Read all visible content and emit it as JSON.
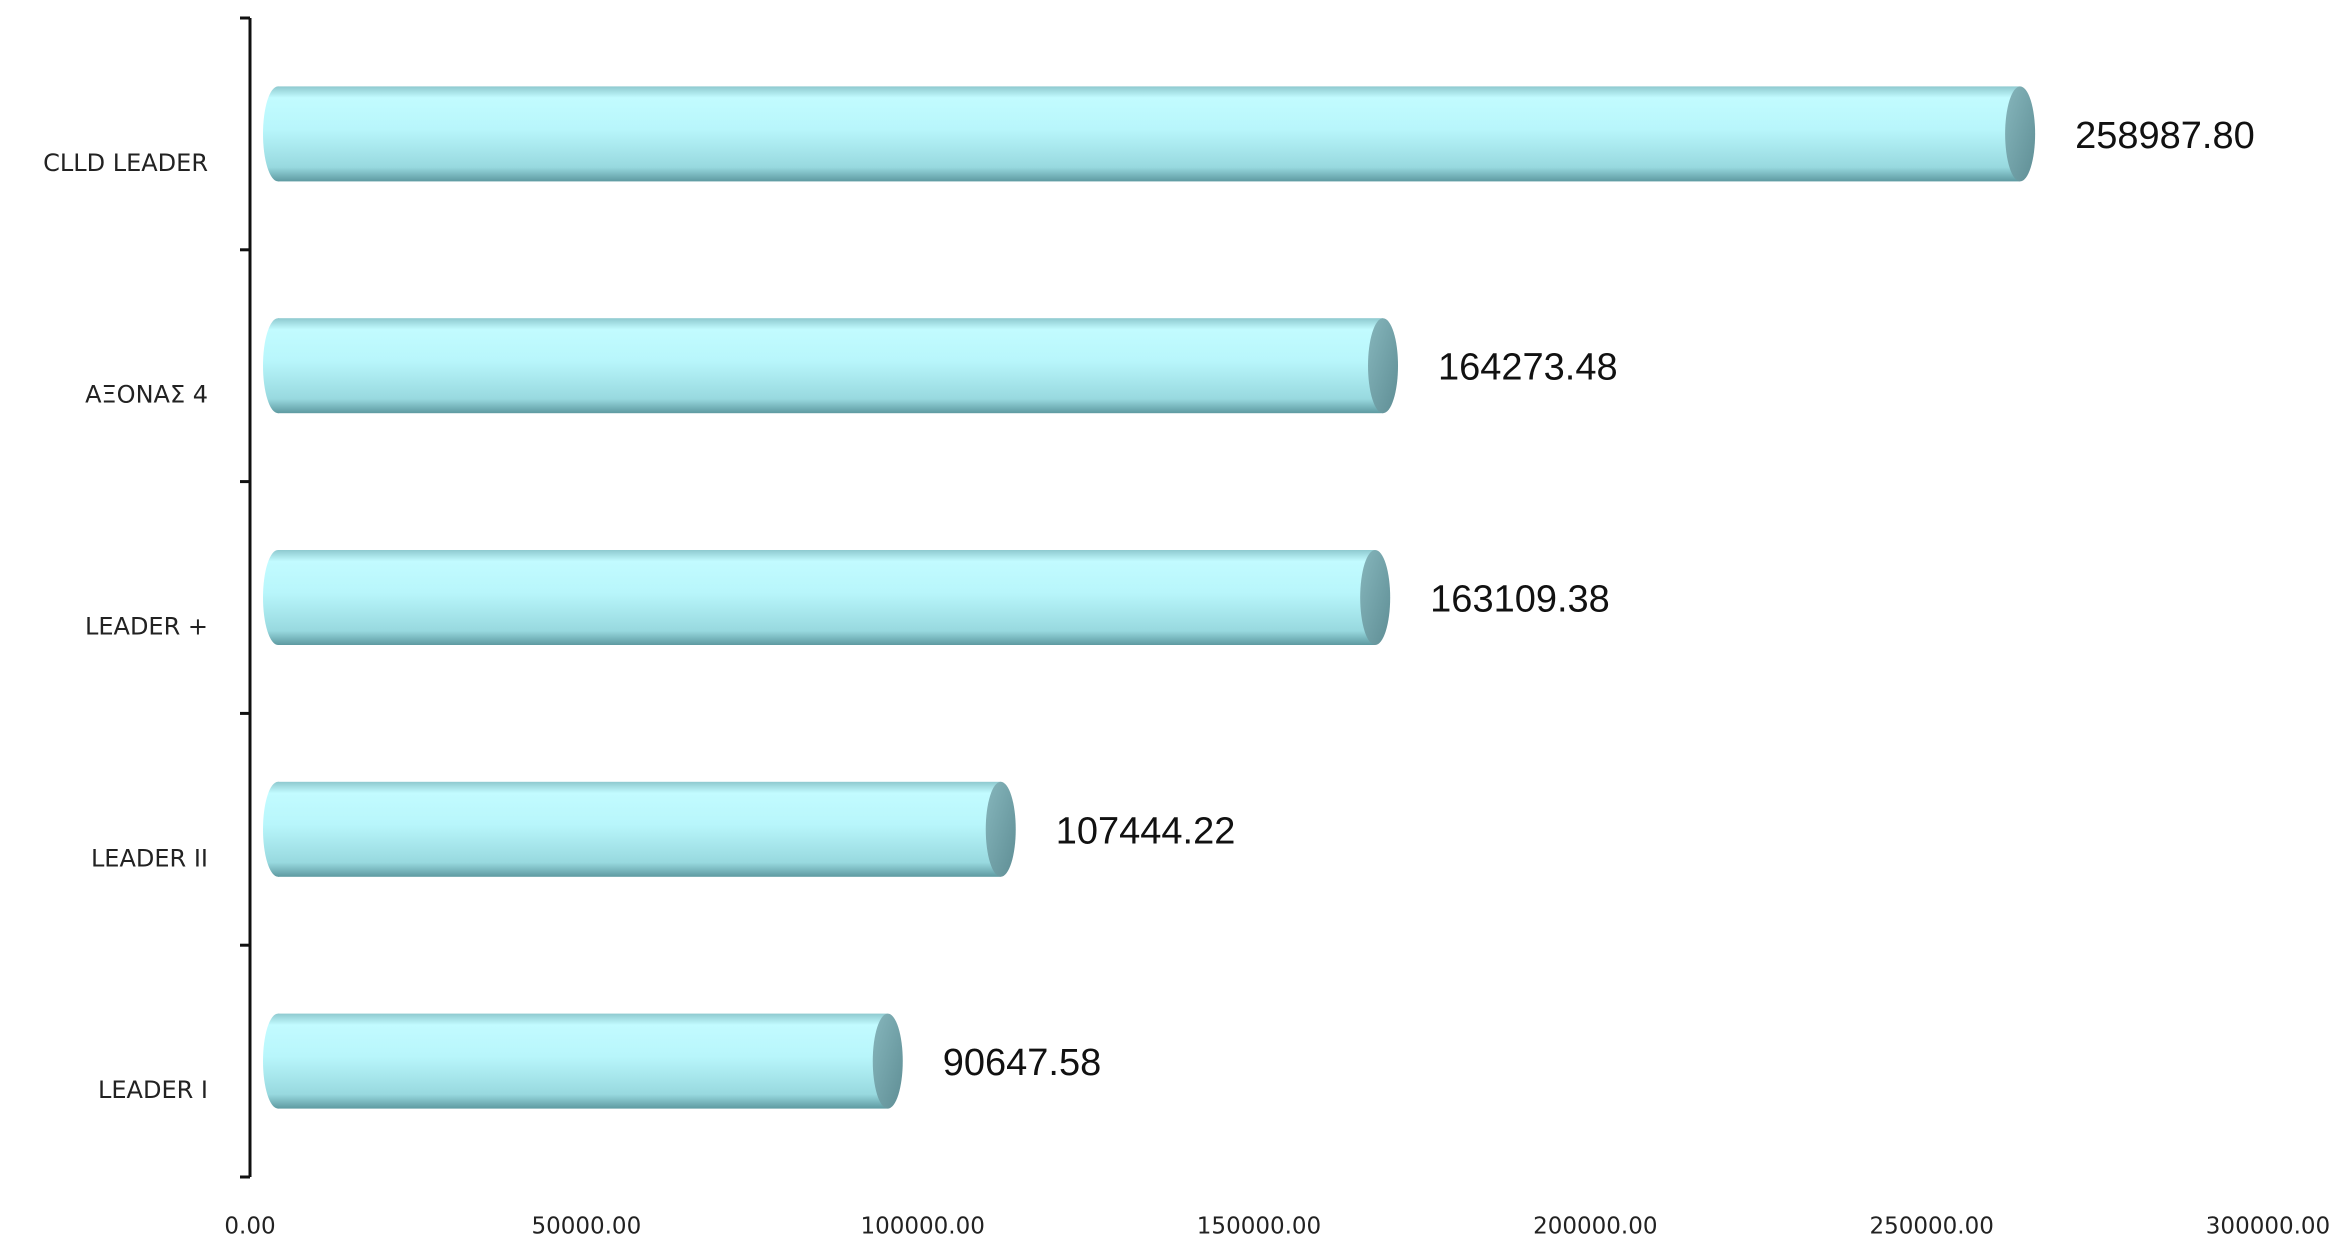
{
  "chart_data": {
    "type": "bar",
    "orientation": "horizontal",
    "style": "cylinder",
    "categories": [
      "CLLD LEADER",
      "ΑΞΟΝΑΣ 4",
      "LEADER +",
      "LEADER II",
      "LEADER I"
    ],
    "values": [
      258987.8,
      164273.48,
      163109.38,
      107444.22,
      90647.58
    ],
    "value_labels": [
      "258987.80",
      "164273.48",
      "163109.38",
      "107444.22",
      "90647.58"
    ],
    "color": "#b8f6fb",
    "xlim": [
      0,
      300000
    ],
    "xticks": [
      {
        "value": 0,
        "label": "0.00"
      },
      {
        "value": 50000,
        "label": "50000.00"
      },
      {
        "value": 100000,
        "label": "100000.00"
      },
      {
        "value": 150000,
        "label": "150000.00"
      },
      {
        "value": 200000,
        "label": "200000.00"
      },
      {
        "value": 250000,
        "label": "250000.00"
      },
      {
        "value": 300000,
        "label": "300000.00"
      }
    ],
    "grid": false
  }
}
